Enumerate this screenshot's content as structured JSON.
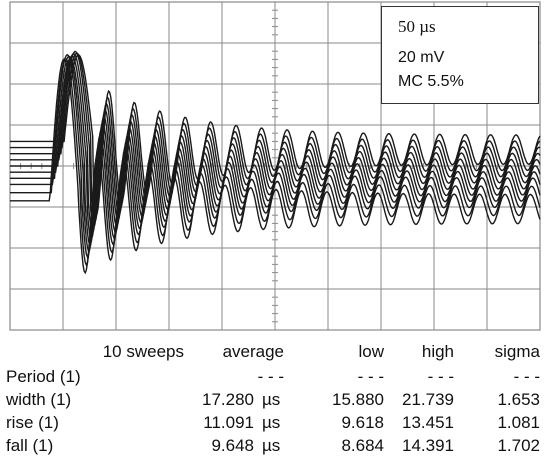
{
  "settings": {
    "timebase": "50 µs",
    "voltage": "20 mV",
    "mc": "MC 5.5%"
  },
  "stats": {
    "headers": [
      "10 sweeps",
      "average",
      "low",
      "high",
      "sigma"
    ],
    "rows": [
      {
        "label": "Period (1)",
        "average": "-  -  -",
        "unit": "",
        "low": "-  -  -",
        "high": "-  -  -",
        "sigma": "-  -  -"
      },
      {
        "label": "width (1)",
        "average": "17.280",
        "unit": "µs",
        "low": "15.880",
        "high": "21.739",
        "sigma": "1.653"
      },
      {
        "label": "rise (1)",
        "average": "11.091",
        "unit": "µs",
        "low": "9.618",
        "high": "13.451",
        "sigma": "1.081"
      },
      {
        "label": "fall (1)",
        "average": "9.648",
        "unit": "µs",
        "low": "8.684",
        "high": "14.391",
        "sigma": "1.702"
      }
    ]
  },
  "chart_data": {
    "type": "line",
    "grid": true,
    "x_divisions": 10,
    "y_divisions": 8,
    "sweeps": 10,
    "sweep_baselines": [
      -0.85,
      -0.65,
      -0.45,
      -0.3,
      -0.15,
      0.0,
      0.15,
      0.3,
      0.45,
      0.6
    ],
    "sweep_peaks": [
      3.6,
      3.4,
      3.3,
      3.1,
      2.9,
      2.8,
      2.7,
      2.6,
      2.4,
      2.2
    ],
    "colors": {
      "trace": "#1a1a1a",
      "grid": "#8a8a8a"
    }
  }
}
